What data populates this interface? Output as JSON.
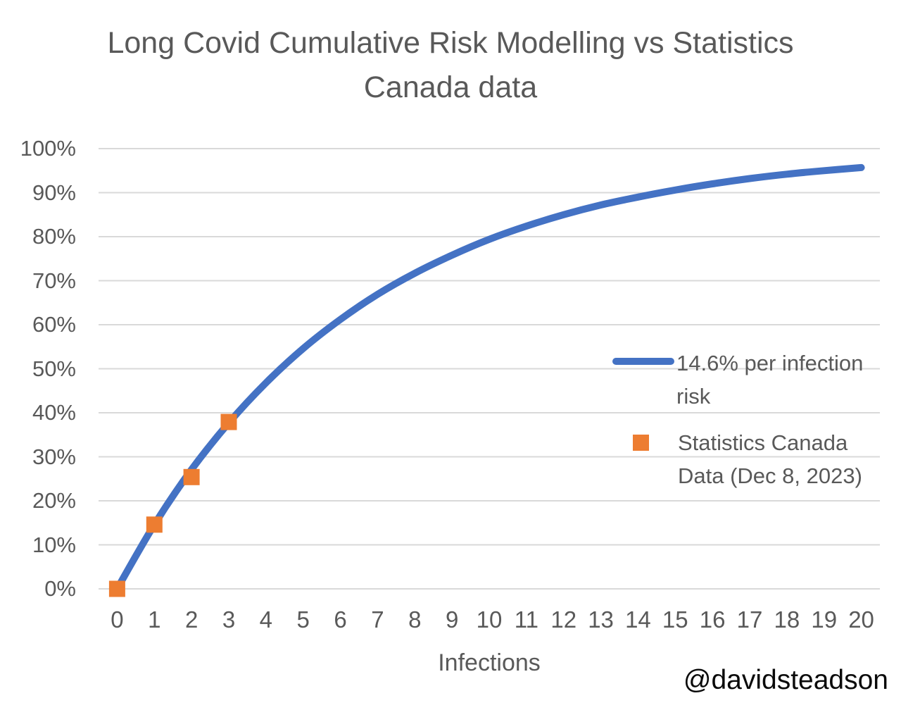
{
  "watermark": "@davidsteadson",
  "colors": {
    "title_text": "#595959",
    "axis_text": "#595959",
    "gridline": "#D9D9D9",
    "line_series": "#4472C4",
    "scatter_series": "#ED7D31",
    "watermark_text": "#0a0a0a"
  },
  "chart_data": {
    "type": "line",
    "title": "Long Covid Cumulative Risk Modelling vs Statistics Canada data",
    "xlabel": "Infections",
    "ylabel": "",
    "ylim": [
      0,
      100
    ],
    "grid": true,
    "legend_position": "overlay-right-middle",
    "xticks": [
      "0",
      "1",
      "2",
      "3",
      "4",
      "5",
      "6",
      "7",
      "8",
      "9",
      "10",
      "11",
      "12",
      "13",
      "14",
      "15",
      "16",
      "17",
      "18",
      "19",
      "20"
    ],
    "yticks": [
      "0%",
      "10%",
      "20%",
      "30%",
      "40%",
      "50%",
      "60%",
      "70%",
      "80%",
      "90%",
      "100%"
    ],
    "series": [
      {
        "name": "14.6% per infection risk",
        "type": "line",
        "color": "#4472C4",
        "x": [
          0,
          1,
          2,
          3,
          4,
          5,
          6,
          7,
          8,
          9,
          10,
          11,
          12,
          13,
          14,
          15,
          16,
          17,
          18,
          19,
          20
        ],
        "values": [
          0,
          14.6,
          27.1,
          37.7,
          46.8,
          54.6,
          61.2,
          66.9,
          71.7,
          75.8,
          79.4,
          82.4,
          85.0,
          87.2,
          89.0,
          90.6,
          92.0,
          93.2,
          94.2,
          95.0,
          95.7
        ]
      },
      {
        "name": "Statistics Canada Data (Dec 8, 2023)",
        "type": "scatter",
        "color": "#ED7D31",
        "x": [
          0,
          1,
          2,
          3
        ],
        "values": [
          0,
          14.6,
          25.4,
          37.9
        ]
      }
    ]
  }
}
